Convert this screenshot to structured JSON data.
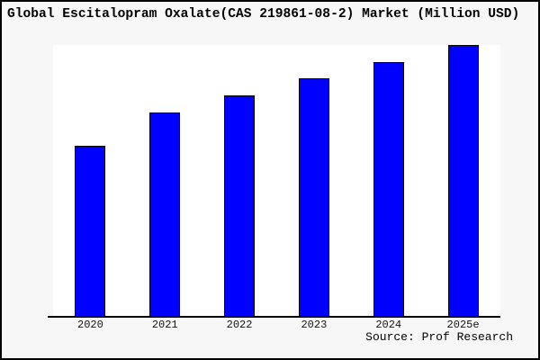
{
  "title": "Global Escitalopram Oxalate(CAS 219861-08-2) Market (Million USD)",
  "source_note": "Source: Prof Research",
  "colors": {
    "page_background": "#f7f7f7",
    "plot_background": "#ffffff",
    "page_border": "#000000",
    "axis_line": "#000000",
    "bar_fill": "#0000ff",
    "bar_edge": "#000000",
    "text": "#000000"
  },
  "chart_data": {
    "type": "bar",
    "title": "Global Escitalopram Oxalate(CAS 219861-08-2) Market (Million USD)",
    "categories": [
      "2020",
      "2021",
      "2022",
      "2023",
      "2024",
      "2025e"
    ],
    "values": [
      62.8,
      75.1,
      81.4,
      87.7,
      93.7,
      100
    ],
    "value_scale": "relative percent of tallest bar (2025e); chart shows no y-axis tick labels",
    "xlabel": "",
    "ylabel": "",
    "ylim": [
      0,
      100
    ],
    "grid": false,
    "legend": null,
    "y_axis_visible": false,
    "bar_color": "#0000ff",
    "bar_border_color": "#000000",
    "source": "Prof Research"
  }
}
